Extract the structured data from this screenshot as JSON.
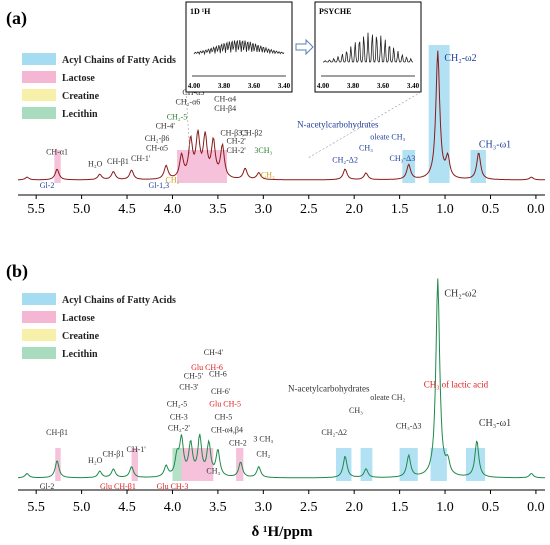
{
  "chart_data": [
    {
      "type": "line",
      "panel_label": "(a)",
      "x_reversed": true,
      "xlim": [
        5.7,
        -0.1
      ],
      "ticks": [
        "5.5",
        "5.0",
        "4.5",
        "4.0",
        "3.5",
        "3.0",
        "2.5",
        "2.0",
        "1.5",
        "1.0",
        "0.5",
        "0.0"
      ],
      "tick_values": [
        5.5,
        5.0,
        4.5,
        4.0,
        3.5,
        3.0,
        2.5,
        2.0,
        1.5,
        1.0,
        0.5,
        0.0
      ],
      "legend": [
        {
          "label": "Acyl Chains of Fatty Acids",
          "color": "#a6dcf2"
        },
        {
          "label": "Lactose",
          "color": "#f5b6d3"
        },
        {
          "label": "Creatine",
          "color": "#f7f0a8"
        },
        {
          "label": "Lecithin",
          "color": "#a9dcbf"
        }
      ],
      "line_color": "#8b1a1a",
      "series": [
        {
          "values": [
            [
              5.6,
              0.02
            ],
            [
              5.27,
              0.08
            ],
            [
              4.8,
              0.04
            ],
            [
              4.65,
              0.06
            ],
            [
              4.45,
              0.07
            ],
            [
              4.07,
              0.1
            ],
            [
              3.9,
              0.17
            ],
            [
              3.8,
              0.28
            ],
            [
              3.72,
              0.31
            ],
            [
              3.64,
              0.3
            ],
            [
              3.55,
              0.27
            ],
            [
              3.45,
              0.24
            ],
            [
              3.2,
              0.08
            ],
            [
              3.05,
              0.05
            ],
            [
              2.1,
              0.08
            ],
            [
              1.87,
              0.05
            ],
            [
              1.4,
              0.11
            ],
            [
              1.08,
              0.95
            ],
            [
              0.97,
              0.15
            ],
            [
              0.63,
              0.2
            ],
            [
              0.05,
              0.02
            ]
          ]
        }
      ],
      "highlights": [
        {
          "x": [
            1.18,
            0.95
          ],
          "color": "#a6dcf2"
        },
        {
          "x": [
            0.72,
            0.55
          ],
          "color": "#a6dcf2"
        },
        {
          "x": [
            1.47,
            1.33
          ],
          "color": "#a6dcf2"
        },
        {
          "x": [
            5.3,
            5.23
          ],
          "color": "#f5b6d3"
        },
        {
          "x": [
            3.95,
            3.4
          ],
          "color": "#f5b6d3"
        }
      ],
      "annotations": [
        {
          "text": "CH₂-ω2",
          "x": 0.83,
          "y": 0.88,
          "color": "#1f3f9a"
        },
        {
          "text": "CH₃-ω1",
          "x": 0.45,
          "y": 0.24,
          "color": "#1f3f9a"
        },
        {
          "text": "CH₃-Δ3",
          "x": 1.47,
          "y": 0.14,
          "color": "#1f3f9a"
        },
        {
          "text": "oleate CH₃",
          "x": 1.63,
          "y": 0.3,
          "color": "#1f3f9a"
        },
        {
          "text": "CH₃",
          "x": 1.87,
          "y": 0.22,
          "color": "#1f3f9a"
        },
        {
          "text": "N-acetylcarbohydrates",
          "x": 2.18,
          "y": 0.39,
          "color": "#1f3f9a"
        },
        {
          "text": "CH₂-Δ2",
          "x": 2.1,
          "y": 0.13,
          "color": "#1f3f9a"
        },
        {
          "text": "CH-α1",
          "x": 5.27,
          "y": 0.19,
          "color": "#333333"
        },
        {
          "text": "H₂O",
          "x": 4.85,
          "y": 0.1,
          "color": "#333333"
        },
        {
          "text": "CH-β1",
          "x": 4.6,
          "y": 0.12,
          "color": "#333333"
        },
        {
          "text": "CH-1'",
          "x": 4.35,
          "y": 0.14,
          "color": "#333333"
        },
        {
          "text": "Gl-2",
          "x": 5.38,
          "y": -0.06,
          "color": "#1f3f9a"
        },
        {
          "text": "Gl-1,3",
          "x": 4.15,
          "y": -0.06,
          "color": "#1f3f9a"
        },
        {
          "text": "CH-4'",
          "x": 4.08,
          "y": 0.38,
          "color": "#333333"
        },
        {
          "text": "CH₂-5",
          "x": 3.95,
          "y": 0.45,
          "color": "#2e7d32"
        },
        {
          "text": "CH₂-α6",
          "x": 3.83,
          "y": 0.56,
          "color": "#333333"
        },
        {
          "text": "CH-α3",
          "x": 3.77,
          "y": 0.63,
          "color": "#333333"
        },
        {
          "text": "CH-5'",
          "x": 3.53,
          "y": 0.73,
          "color": "#333333"
        },
        {
          "text": "CH-3'",
          "x": 3.52,
          "y": 0.66,
          "color": "#333333"
        },
        {
          "text": "CH-α4",
          "x": 3.42,
          "y": 0.58,
          "color": "#333333"
        },
        {
          "text": "CH-β4",
          "x": 3.42,
          "y": 0.51,
          "color": "#333333"
        },
        {
          "text": "CH₂-β6",
          "x": 4.17,
          "y": 0.29,
          "color": "#333333"
        },
        {
          "text": "CH-α5",
          "x": 4.17,
          "y": 0.22,
          "color": "#333333"
        },
        {
          "text": "CH-β3,5",
          "x": 3.32,
          "y": 0.33,
          "color": "#333333"
        },
        {
          "text": "CH-2'",
          "x": 3.3,
          "y": 0.27,
          "color": "#333333"
        },
        {
          "text": "CH-2'",
          "x": 3.3,
          "y": 0.2,
          "color": "#333333"
        },
        {
          "text": "CH-β2",
          "x": 3.13,
          "y": 0.33,
          "color": "#333333"
        },
        {
          "text": "3CH₃",
          "x": 3.0,
          "y": 0.2,
          "color": "#2e7d32"
        },
        {
          "text": "CH₂",
          "x": 4.0,
          "y": -0.02,
          "color": "#d4a017"
        },
        {
          "text": "CH₃",
          "x": 2.95,
          "y": 0.02,
          "color": "#d4a017"
        }
      ],
      "insets": [
        {
          "title": "1D ¹H",
          "ticks": [
            "4.00",
            "3.80",
            "3.60",
            "3.40"
          ]
        },
        {
          "title": "PSYCHE",
          "ticks": [
            "4.00",
            "3.80",
            "3.60",
            "3.40"
          ]
        }
      ]
    },
    {
      "type": "line",
      "panel_label": "(b)",
      "x_reversed": true,
      "xlim": [
        5.7,
        -0.1
      ],
      "xlabel": "δ ¹H/ppm",
      "ticks": [
        "5.5",
        "5.0",
        "4.5",
        "4.0",
        "3.5",
        "3.0",
        "2.5",
        "2.0",
        "1.5",
        "1.0",
        "0.5",
        "0.0"
      ],
      "tick_values": [
        5.5,
        5.0,
        4.5,
        4.0,
        3.5,
        3.0,
        2.5,
        2.0,
        1.5,
        1.0,
        0.5,
        0.0
      ],
      "legend": [
        {
          "label": "Acyl Chains of Fatty Acids",
          "color": "#a6dcf2"
        },
        {
          "label": "Lactose",
          "color": "#f5b6d3"
        },
        {
          "label": "Creatine",
          "color": "#f7f0a8"
        },
        {
          "label": "Lecithin",
          "color": "#a9dcbf"
        }
      ],
      "line_color": "#1e8a4a",
      "series": [
        {
          "values": [
            [
              5.6,
              0.02
            ],
            [
              5.27,
              0.08
            ],
            [
              4.8,
              0.03
            ],
            [
              4.65,
              0.04
            ],
            [
              4.45,
              0.05
            ],
            [
              4.07,
              0.05
            ],
            [
              3.95,
              0.09
            ],
            [
              3.9,
              0.17
            ],
            [
              3.8,
              0.15
            ],
            [
              3.7,
              0.18
            ],
            [
              3.6,
              0.15
            ],
            [
              3.5,
              0.12
            ],
            [
              3.25,
              0.07
            ],
            [
              3.05,
              0.05
            ],
            [
              2.1,
              0.1
            ],
            [
              1.87,
              0.04
            ],
            [
              1.4,
              0.1
            ],
            [
              1.08,
              0.92
            ],
            [
              0.97,
              0.06
            ],
            [
              0.65,
              0.17
            ],
            [
              0.05,
              0.02
            ]
          ]
        }
      ],
      "highlights": [
        {
          "x": [
            1.16,
            0.98
          ],
          "color": "#a6dcf2"
        },
        {
          "x": [
            0.77,
            0.56
          ],
          "color": "#a6dcf2"
        },
        {
          "x": [
            1.5,
            1.3
          ],
          "color": "#a6dcf2"
        },
        {
          "x": [
            2.2,
            2.03
          ],
          "color": "#a6dcf2"
        },
        {
          "x": [
            1.93,
            1.8
          ],
          "color": "#a6dcf2"
        },
        {
          "x": [
            5.29,
            5.23
          ],
          "color": "#f5b6d3"
        },
        {
          "x": [
            4.45,
            4.38
          ],
          "color": "#f5b6d3"
        },
        {
          "x": [
            3.9,
            3.55
          ],
          "color": "#f5b6d3"
        },
        {
          "x": [
            3.3,
            3.22
          ],
          "color": "#f5b6d3"
        },
        {
          "x": [
            4.0,
            3.9
          ],
          "color": "#a9dcbf"
        }
      ],
      "annotations": [
        {
          "text": "CH₂-ω2",
          "x": 0.83,
          "y": 0.84,
          "color": "#333333"
        },
        {
          "text": "CH₃-ω1",
          "x": 0.45,
          "y": 0.24,
          "color": "#333333"
        },
        {
          "text": "CH₃ of lactic acid",
          "x": 0.88,
          "y": 0.42,
          "color": "#e02020"
        },
        {
          "text": "CH₃-Δ3",
          "x": 1.4,
          "y": 0.23,
          "color": "#333333"
        },
        {
          "text": "oleate CH₂",
          "x": 1.63,
          "y": 0.36,
          "color": "#333333"
        },
        {
          "text": "CH₃",
          "x": 1.98,
          "y": 0.3,
          "color": "#333333"
        },
        {
          "text": "N-acetylcarbohydrates",
          "x": 2.28,
          "y": 0.4,
          "color": "#333333"
        },
        {
          "text": "CH₂-Δ2",
          "x": 2.22,
          "y": 0.2,
          "color": "#333333"
        },
        {
          "text": "CH-β1",
          "x": 5.27,
          "y": 0.2,
          "color": "#333333"
        },
        {
          "text": "H₂O",
          "x": 4.85,
          "y": 0.07,
          "color": "#333333"
        },
        {
          "text": "CH-β1",
          "x": 4.65,
          "y": 0.1,
          "color": "#333333"
        },
        {
          "text": "CH-1'",
          "x": 4.4,
          "y": 0.12,
          "color": "#333333"
        },
        {
          "text": "Gl-2",
          "x": 5.38,
          "y": -0.05,
          "color": "#333333"
        },
        {
          "text": "Glu CH-β1",
          "x": 4.6,
          "y": -0.05,
          "color": "#e02020"
        },
        {
          "text": "Glu CH-3",
          "x": 4.0,
          "y": -0.05,
          "color": "#e02020"
        },
        {
          "text": "CH₃",
          "x": 3.55,
          "y": 0.02,
          "color": "#333333"
        },
        {
          "text": "CH₂-2'",
          "x": 3.93,
          "y": 0.22,
          "color": "#333333"
        },
        {
          "text": "CH-3",
          "x": 3.93,
          "y": 0.27,
          "color": "#333333"
        },
        {
          "text": "CH₂-5",
          "x": 3.95,
          "y": 0.33,
          "color": "#333333"
        },
        {
          "text": "CH-3'",
          "x": 3.82,
          "y": 0.41,
          "color": "#333333"
        },
        {
          "text": "CH-5'",
          "x": 3.77,
          "y": 0.46,
          "color": "#333333"
        },
        {
          "text": "Glu CH-6",
          "x": 3.62,
          "y": 0.5,
          "color": "#e02020"
        },
        {
          "text": "CH-4'",
          "x": 3.55,
          "y": 0.57,
          "color": "#333333"
        },
        {
          "text": "CH-6",
          "x": 3.5,
          "y": 0.47,
          "color": "#333333"
        },
        {
          "text": "CH-6'",
          "x": 3.47,
          "y": 0.39,
          "color": "#333333"
        },
        {
          "text": "Glu CH-5",
          "x": 3.42,
          "y": 0.33,
          "color": "#e02020"
        },
        {
          "text": "CH-5",
          "x": 3.44,
          "y": 0.27,
          "color": "#333333"
        },
        {
          "text": "CH-α4,β4",
          "x": 3.4,
          "y": 0.21,
          "color": "#333333"
        },
        {
          "text": "CH-2",
          "x": 3.28,
          "y": 0.15,
          "color": "#333333"
        },
        {
          "text": "3 CH₃",
          "x": 3.0,
          "y": 0.17,
          "color": "#333333"
        },
        {
          "text": "CH₂",
          "x": 3.0,
          "y": 0.1,
          "color": "#333333"
        }
      ]
    }
  ]
}
